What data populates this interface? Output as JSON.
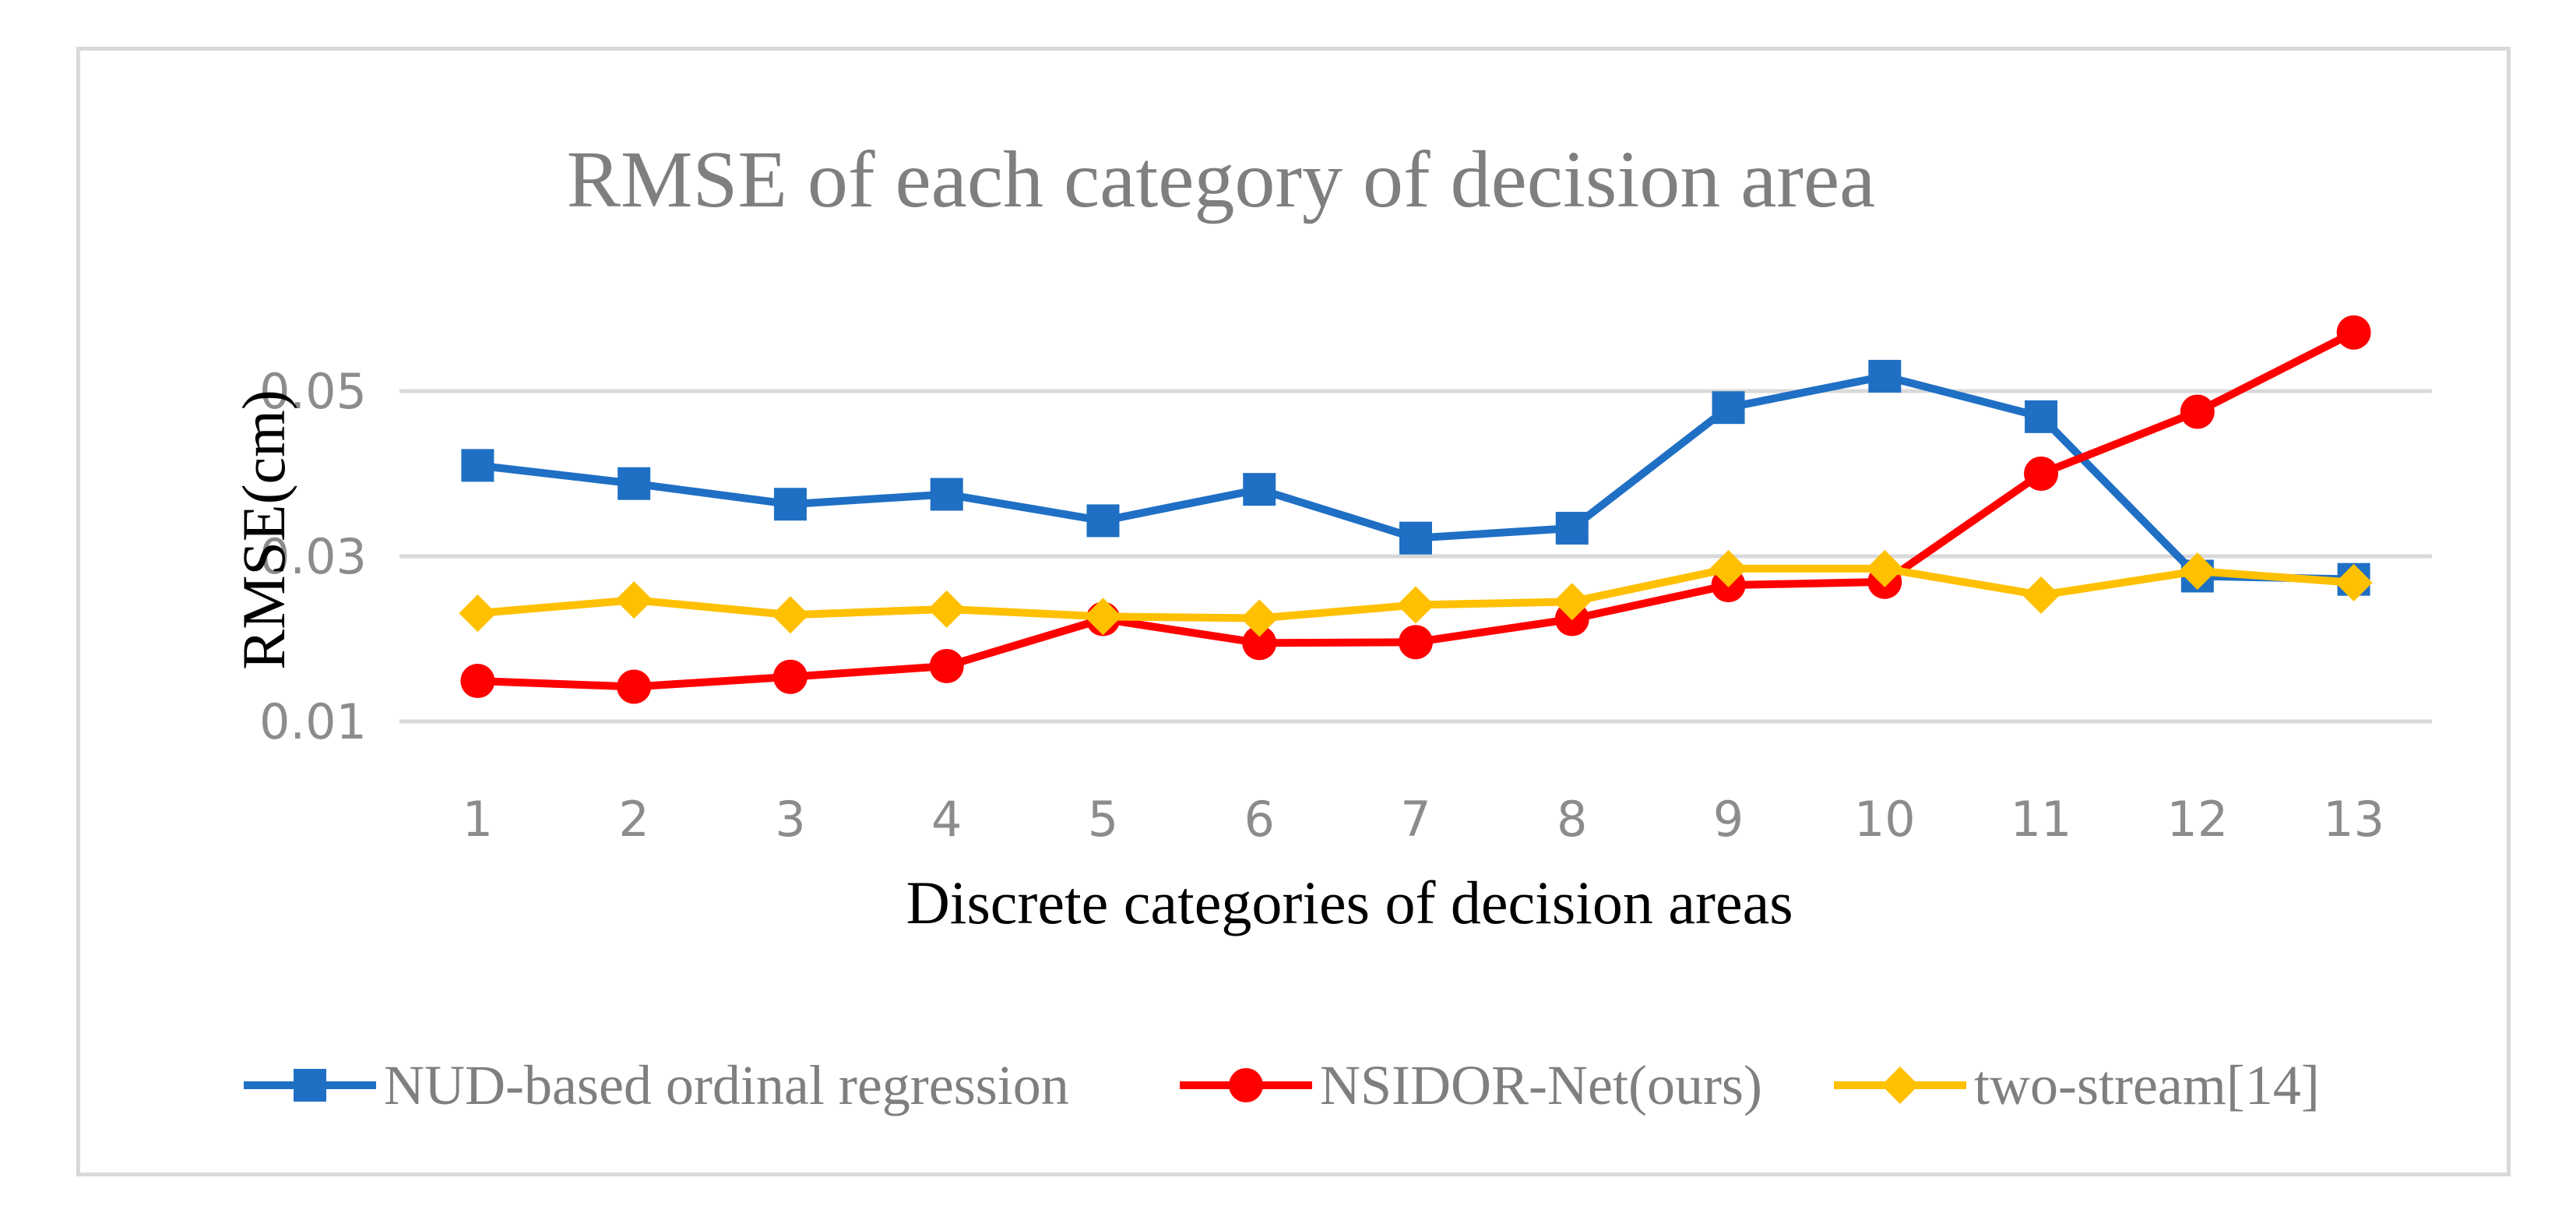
{
  "chart_data": {
    "type": "line",
    "title": "RMSE of each category of decision area",
    "xlabel": "Discrete categories of decision areas",
    "ylabel": "RMSE(cm)",
    "categories": [
      "1",
      "2",
      "3",
      "4",
      "5",
      "6",
      "7",
      "8",
      "9",
      "10",
      "11",
      "12",
      "13"
    ],
    "ylim": [
      0.01,
      0.05
    ],
    "yticks": [
      0.01,
      0.03,
      0.05
    ],
    "ytick_labels": [
      "0.01",
      "0.03",
      "0.05"
    ],
    "grid": true,
    "legend_position": "bottom",
    "series": [
      {
        "name": "NUD-based ordinal regression",
        "color": "#1f6fc5",
        "marker": "square",
        "values": [
          0.041,
          0.0388,
          0.0363,
          0.0375,
          0.0343,
          0.0381,
          0.0322,
          0.0334,
          0.048,
          0.0518,
          0.0469,
          0.0276,
          0.0272
        ]
      },
      {
        "name": "NSIDOR-Net(ours)",
        "color": "#ff0000",
        "marker": "circle",
        "values": [
          0.0149,
          0.0142,
          0.0154,
          0.0167,
          0.0224,
          0.0195,
          0.0196,
          0.0224,
          0.0265,
          0.0269,
          0.04,
          0.0475,
          0.0571
        ]
      },
      {
        "name": "two-stream[14]",
        "color": "#ffc000",
        "marker": "diamond",
        "values": [
          0.0231,
          0.0247,
          0.0229,
          0.0236,
          0.0227,
          0.0225,
          0.0241,
          0.0245,
          0.0285,
          0.0285,
          0.0253,
          0.0282,
          0.0268
        ]
      }
    ]
  }
}
